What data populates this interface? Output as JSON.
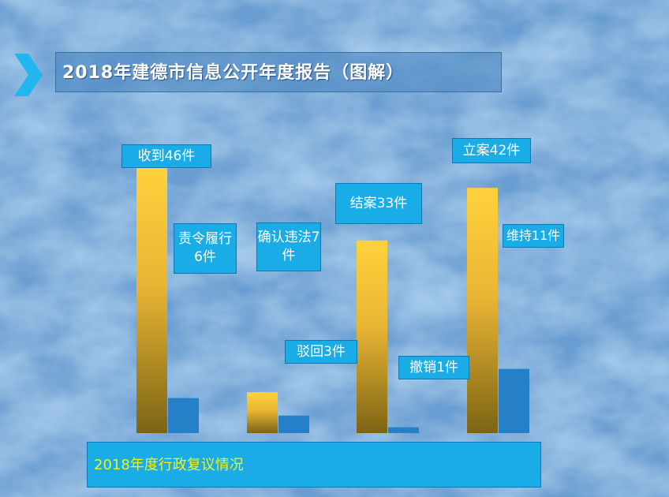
{
  "page": {
    "title": "2018年建德市信息公开年度报告（图解）",
    "footer": "2018年度行政复议情况",
    "icon": "chevron-right-icon"
  },
  "colors": {
    "gold_top": "#ffd23c",
    "gold_bottom": "#7c6414",
    "blue_bar": "#2680c8",
    "label_bg": "#1aace6",
    "footer_text": "#f2f21a"
  },
  "chart_data": {
    "type": "bar",
    "categories": [
      "收到",
      "确认违法",
      "结案",
      "立案"
    ],
    "ylim": [
      0,
      50
    ],
    "series": [
      {
        "values": [
          46,
          7,
          33,
          42
        ],
        "labels": [
          "收到46件",
          "确认违法7件",
          "结案33件",
          "立案42件"
        ]
      },
      {
        "values": [
          6,
          3,
          1,
          11
        ],
        "labels": [
          "责令履行6件",
          "驳回3件",
          "撤销1件",
          "维持11件"
        ]
      }
    ]
  }
}
